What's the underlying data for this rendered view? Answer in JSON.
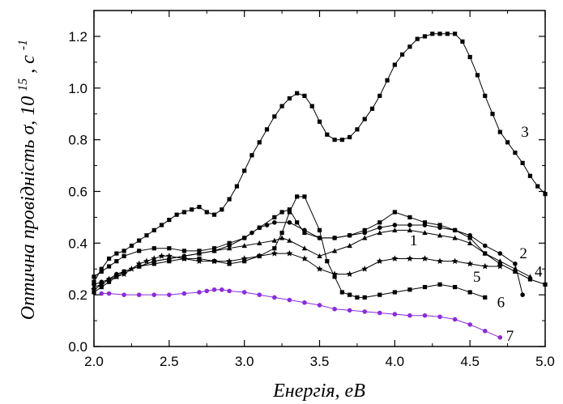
{
  "chart_data": {
    "type": "line",
    "xlabel": "Енергія, eB",
    "ylabel": {
      "prefix": "Оптична провідність σ, 10",
      "exp": "15",
      "mid": ", c",
      "exp2": "-1"
    },
    "xlim": [
      2.0,
      5.0
    ],
    "ylim": [
      0.0,
      1.3
    ],
    "xticks": [
      2.0,
      2.5,
      3.0,
      3.5,
      4.0,
      4.5,
      5.0
    ],
    "xtick_labels": [
      "2.0",
      "2.5",
      "3.0",
      "3.5",
      "4.0",
      "4.5",
      "5.0"
    ],
    "yticks": [
      0.0,
      0.2,
      0.4,
      0.6,
      0.8,
      1.0,
      1.2
    ],
    "ytick_labels": [
      "0.0",
      "0.2",
      "0.4",
      "0.6",
      "0.8",
      "1.0",
      "1.2"
    ],
    "grid": false,
    "series": [
      {
        "name": "1",
        "color": "#000000",
        "marker": "circle",
        "label_pos": [
          4.1,
          0.41
        ],
        "x": [
          2.0,
          2.05,
          2.1,
          2.15,
          2.2,
          2.3,
          2.4,
          2.5,
          2.6,
          2.7,
          2.8,
          2.9,
          3.0,
          3.05,
          3.1,
          3.15,
          3.2,
          3.3,
          3.4,
          3.5,
          3.6,
          3.7,
          3.8,
          3.9,
          4.0,
          4.1,
          4.2,
          4.3,
          4.4,
          4.5,
          4.6,
          4.7,
          4.8,
          4.85
        ],
        "y": [
          0.24,
          0.25,
          0.26,
          0.28,
          0.29,
          0.31,
          0.33,
          0.34,
          0.35,
          0.36,
          0.37,
          0.39,
          0.42,
          0.44,
          0.46,
          0.47,
          0.48,
          0.48,
          0.45,
          0.42,
          0.42,
          0.43,
          0.44,
          0.46,
          0.47,
          0.47,
          0.47,
          0.46,
          0.45,
          0.43,
          0.39,
          0.36,
          0.32,
          0.2
        ]
      },
      {
        "name": "2",
        "color": "#000000",
        "marker": "square",
        "label_pos": [
          4.83,
          0.36
        ],
        "x": [
          2.0,
          2.05,
          2.1,
          2.15,
          2.2,
          2.3,
          2.4,
          2.5,
          2.6,
          2.7,
          2.8,
          2.9,
          3.0,
          3.1,
          3.2,
          3.25,
          3.3,
          3.35,
          3.4,
          3.5,
          3.6,
          3.7,
          3.8,
          3.9,
          4.0,
          4.1,
          4.2,
          4.3,
          4.4,
          4.5,
          4.6,
          4.7,
          4.8,
          4.9,
          5.0
        ],
        "y": [
          0.27,
          0.29,
          0.31,
          0.33,
          0.35,
          0.37,
          0.38,
          0.38,
          0.37,
          0.37,
          0.38,
          0.4,
          0.42,
          0.46,
          0.5,
          0.52,
          0.53,
          0.48,
          0.44,
          0.42,
          0.42,
          0.43,
          0.45,
          0.48,
          0.52,
          0.5,
          0.48,
          0.47,
          0.45,
          0.42,
          0.36,
          0.32,
          0.29,
          0.26,
          0.24
        ]
      },
      {
        "name": "3",
        "color": "#000000",
        "marker": "square",
        "label_pos": [
          4.84,
          0.83
        ],
        "x": [
          2.0,
          2.05,
          2.1,
          2.15,
          2.2,
          2.25,
          2.3,
          2.35,
          2.4,
          2.45,
          2.5,
          2.55,
          2.6,
          2.65,
          2.7,
          2.75,
          2.8,
          2.85,
          2.9,
          2.95,
          3.0,
          3.05,
          3.1,
          3.15,
          3.2,
          3.25,
          3.3,
          3.35,
          3.4,
          3.45,
          3.5,
          3.55,
          3.6,
          3.65,
          3.7,
          3.75,
          3.8,
          3.85,
          3.9,
          3.95,
          4.0,
          4.05,
          4.1,
          4.15,
          4.2,
          4.25,
          4.3,
          4.35,
          4.4,
          4.45,
          4.5,
          4.55,
          4.6,
          4.65,
          4.7,
          4.75,
          4.8,
          4.85,
          4.9,
          4.95,
          5.0
        ],
        "y": [
          0.25,
          0.3,
          0.34,
          0.36,
          0.37,
          0.39,
          0.41,
          0.43,
          0.45,
          0.47,
          0.49,
          0.51,
          0.52,
          0.53,
          0.54,
          0.52,
          0.51,
          0.53,
          0.57,
          0.62,
          0.68,
          0.74,
          0.79,
          0.84,
          0.89,
          0.93,
          0.96,
          0.98,
          0.97,
          0.93,
          0.87,
          0.82,
          0.8,
          0.8,
          0.81,
          0.84,
          0.88,
          0.92,
          0.97,
          1.03,
          1.09,
          1.13,
          1.16,
          1.19,
          1.2,
          1.21,
          1.21,
          1.21,
          1.21,
          1.18,
          1.12,
          1.05,
          0.97,
          0.9,
          0.83,
          0.79,
          0.75,
          0.71,
          0.66,
          0.62,
          0.59
        ]
      },
      {
        "name": "4",
        "color": "#000000",
        "marker": "triangle",
        "label_pos": [
          4.93,
          0.29
        ],
        "x": [
          2.0,
          2.05,
          2.1,
          2.15,
          2.2,
          2.3,
          2.4,
          2.5,
          2.6,
          2.7,
          2.8,
          2.9,
          3.0,
          3.1,
          3.2,
          3.25,
          3.3,
          3.4,
          3.5,
          3.6,
          3.7,
          3.8,
          3.9,
          4.0,
          4.1,
          4.2,
          4.3,
          4.4,
          4.5,
          4.6,
          4.7,
          4.8,
          4.9
        ],
        "y": [
          0.23,
          0.24,
          0.26,
          0.28,
          0.29,
          0.31,
          0.33,
          0.34,
          0.35,
          0.36,
          0.37,
          0.38,
          0.39,
          0.4,
          0.41,
          0.42,
          0.41,
          0.38,
          0.35,
          0.37,
          0.39,
          0.42,
          0.44,
          0.45,
          0.45,
          0.44,
          0.43,
          0.42,
          0.4,
          0.36,
          0.33,
          0.3,
          0.27
        ]
      },
      {
        "name": "5",
        "color": "#000000",
        "marker": "star",
        "label_pos": [
          4.52,
          0.27
        ],
        "x": [
          2.0,
          2.05,
          2.1,
          2.15,
          2.2,
          2.25,
          2.3,
          2.35,
          2.4,
          2.45,
          2.5,
          2.6,
          2.7,
          2.8,
          2.9,
          3.0,
          3.1,
          3.2,
          3.3,
          3.4,
          3.5,
          3.6,
          3.7,
          3.8,
          3.9,
          4.0,
          4.1,
          4.2,
          4.3,
          4.4,
          4.5,
          4.6,
          4.7
        ],
        "y": [
          0.22,
          0.24,
          0.26,
          0.27,
          0.28,
          0.3,
          0.32,
          0.33,
          0.34,
          0.35,
          0.35,
          0.34,
          0.33,
          0.33,
          0.33,
          0.34,
          0.35,
          0.36,
          0.36,
          0.34,
          0.3,
          0.28,
          0.28,
          0.3,
          0.33,
          0.34,
          0.34,
          0.34,
          0.33,
          0.33,
          0.32,
          0.31,
          0.31
        ]
      },
      {
        "name": "6",
        "color": "#000000",
        "marker": "square",
        "label_pos": [
          4.68,
          0.17
        ],
        "x": [
          2.0,
          2.05,
          2.1,
          2.15,
          2.2,
          2.3,
          2.4,
          2.5,
          2.6,
          2.7,
          2.8,
          2.9,
          3.0,
          3.1,
          3.2,
          3.25,
          3.3,
          3.35,
          3.4,
          3.5,
          3.55,
          3.6,
          3.65,
          3.7,
          3.75,
          3.8,
          3.9,
          4.0,
          4.1,
          4.2,
          4.3,
          4.4,
          4.5,
          4.6
        ],
        "y": [
          0.21,
          0.23,
          0.25,
          0.27,
          0.29,
          0.31,
          0.32,
          0.33,
          0.34,
          0.34,
          0.33,
          0.32,
          0.33,
          0.35,
          0.38,
          0.44,
          0.52,
          0.58,
          0.58,
          0.45,
          0.33,
          0.27,
          0.21,
          0.2,
          0.19,
          0.19,
          0.2,
          0.21,
          0.22,
          0.23,
          0.24,
          0.23,
          0.21,
          0.19
        ]
      },
      {
        "name": "7",
        "color": "#8a2be2",
        "marker": "circle",
        "label_pos": [
          4.74,
          0.04
        ],
        "x": [
          2.05,
          2.1,
          2.2,
          2.3,
          2.4,
          2.5,
          2.6,
          2.7,
          2.75,
          2.8,
          2.85,
          2.9,
          3.0,
          3.1,
          3.2,
          3.3,
          3.4,
          3.5,
          3.6,
          3.7,
          3.8,
          3.9,
          4.0,
          4.1,
          4.2,
          4.3,
          4.4,
          4.5,
          4.6,
          4.7
        ],
        "y": [
          0.205,
          0.205,
          0.2,
          0.2,
          0.2,
          0.2,
          0.205,
          0.21,
          0.215,
          0.22,
          0.22,
          0.215,
          0.21,
          0.2,
          0.19,
          0.18,
          0.17,
          0.16,
          0.145,
          0.14,
          0.135,
          0.13,
          0.125,
          0.12,
          0.12,
          0.115,
          0.105,
          0.085,
          0.06,
          0.035
        ]
      }
    ]
  }
}
